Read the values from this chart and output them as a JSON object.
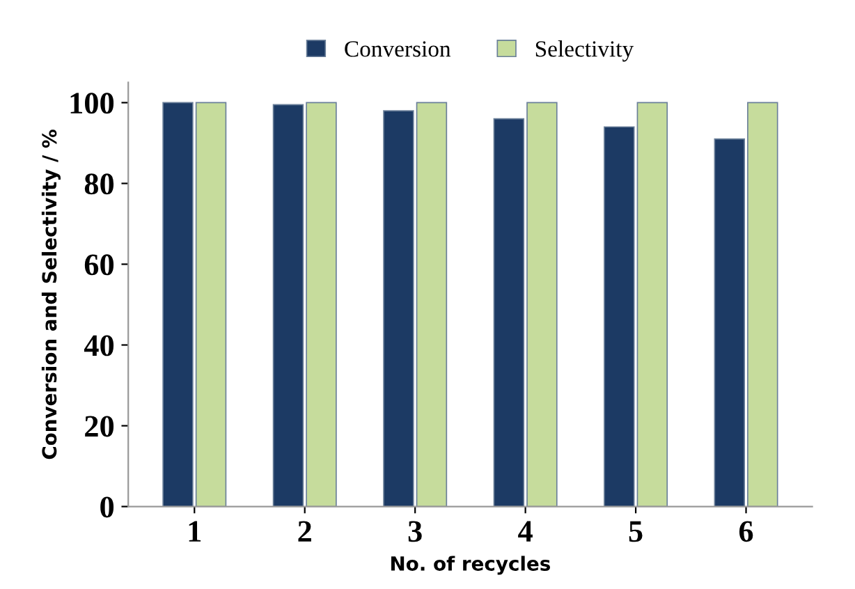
{
  "chart_data": {
    "type": "bar",
    "xlabel": "No. of recycles",
    "ylabel": "Conversion and Selectivity / %",
    "categories": [
      "1",
      "2",
      "3",
      "4",
      "5",
      "6"
    ],
    "series": [
      {
        "name": "Conversion",
        "color": "#1c3a64",
        "values": [
          100,
          99.5,
          98,
          96,
          94,
          91
        ]
      },
      {
        "name": "Selectivity",
        "color": "#c6dc9c",
        "values": [
          100,
          100,
          100,
          100,
          100,
          100
        ]
      }
    ],
    "ylim": [
      0,
      105
    ],
    "yticks": [
      0,
      20,
      40,
      60,
      80,
      100
    ],
    "legend": "top",
    "grid": false
  }
}
